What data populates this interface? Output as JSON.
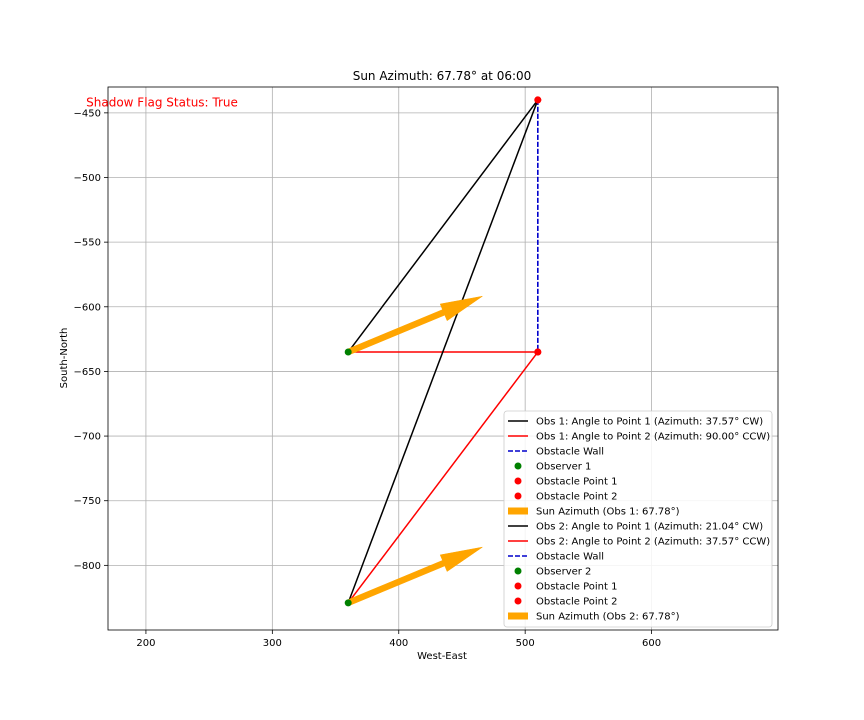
{
  "chart_data": {
    "type": "line",
    "title": "Sun Azimuth: 67.78° at 06:00",
    "xlabel": "West-East",
    "ylabel": "South-North",
    "xlim": [
      170,
      700
    ],
    "ylim": [
      -850,
      -430
    ],
    "xticks": [
      200,
      300,
      400,
      500,
      600
    ],
    "yticks": [
      -450,
      -500,
      -550,
      -600,
      -650,
      -700,
      -750,
      -800
    ],
    "xtick_labels": [
      "200",
      "300",
      "400",
      "500",
      "600"
    ],
    "ytick_labels": [
      "−450",
      "−500",
      "−550",
      "−600",
      "−650",
      "−700",
      "−750",
      "−800"
    ],
    "grid": true,
    "annotation": {
      "text": "Shadow Flag Status: True",
      "color": "#ff0000",
      "x": 197,
      "y": -442
    },
    "legend_position": "lower-right",
    "points": {
      "observer1": {
        "x": 360,
        "y": -635
      },
      "observer2": {
        "x": 360,
        "y": -829
      },
      "obstacle_point1": {
        "x": 510,
        "y": -440
      },
      "obstacle_point2": {
        "x": 510,
        "y": -635
      }
    },
    "series": [
      {
        "name": "Obs 1: Angle to Point 1 (Azimuth: 37.57° CW)",
        "kind": "line",
        "color": "#000000",
        "dash": "solid",
        "x": [
          360,
          510
        ],
        "y": [
          -635,
          -440
        ]
      },
      {
        "name": "Obs 1: Angle to Point 2 (Azimuth: 90.00° CCW)",
        "kind": "line",
        "color": "#ff0000",
        "dash": "solid",
        "x": [
          360,
          510
        ],
        "y": [
          -635,
          -635
        ]
      },
      {
        "name": "Obstacle Wall",
        "kind": "line",
        "color": "#0000cc",
        "dash": "dashed",
        "x": [
          510,
          510
        ],
        "y": [
          -440,
          -635
        ]
      },
      {
        "name": "Observer 1",
        "kind": "point",
        "color": "#008000",
        "x": [
          360
        ],
        "y": [
          -635
        ]
      },
      {
        "name": "Obstacle Point 1",
        "kind": "point",
        "color": "#ff0000",
        "x": [
          510
        ],
        "y": [
          -440
        ]
      },
      {
        "name": "Obstacle Point 2",
        "kind": "point",
        "color": "#ff0000",
        "x": [
          510
        ],
        "y": [
          -635
        ]
      },
      {
        "name": "Sun Azimuth (Obs 1: 67.78°)",
        "kind": "arrow",
        "color": "#ffa500",
        "x": [
          360,
          456
        ],
        "y": [
          -635,
          -596
        ]
      },
      {
        "name": "Obs 2: Angle to Point 1 (Azimuth: 21.04° CW)",
        "kind": "line",
        "color": "#000000",
        "dash": "solid",
        "x": [
          360,
          510
        ],
        "y": [
          -829,
          -440
        ]
      },
      {
        "name": "Obs 2: Angle to Point 2 (Azimuth: 37.57° CCW)",
        "kind": "line",
        "color": "#ff0000",
        "dash": "solid",
        "x": [
          360,
          510
        ],
        "y": [
          -829,
          -635
        ]
      },
      {
        "name": "Obstacle Wall",
        "kind": "line",
        "color": "#0000cc",
        "dash": "dashed",
        "x": [
          510,
          510
        ],
        "y": [
          -440,
          -635
        ]
      },
      {
        "name": "Observer 2",
        "kind": "point",
        "color": "#008000",
        "x": [
          360
        ],
        "y": [
          -829
        ]
      },
      {
        "name": "Obstacle Point 1",
        "kind": "point",
        "color": "#ff0000",
        "x": [
          510
        ],
        "y": [
          -440
        ]
      },
      {
        "name": "Obstacle Point 2",
        "kind": "point",
        "color": "#ff0000",
        "x": [
          510
        ],
        "y": [
          -635
        ]
      },
      {
        "name": "Sun Azimuth (Obs 2: 67.78°)",
        "kind": "arrow",
        "color": "#ffa500",
        "x": [
          360,
          456
        ],
        "y": [
          -829,
          -790
        ]
      }
    ]
  }
}
